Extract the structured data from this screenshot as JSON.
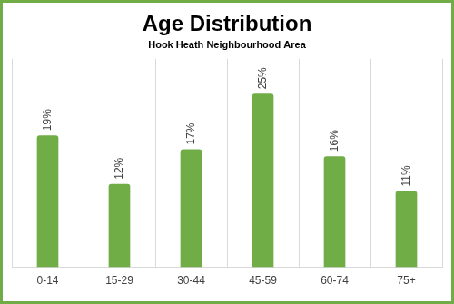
{
  "chart_data": {
    "type": "bar",
    "title": "Age Distribution",
    "subtitle": "Hook Heath Neighbourhood Area",
    "categories": [
      "0-14",
      "15-29",
      "30-44",
      "45-59",
      "60-74",
      "75+"
    ],
    "values": [
      19,
      12,
      17,
      25,
      16,
      11
    ],
    "value_labels": [
      "19%",
      "12%",
      "17%",
      "25%",
      "16%",
      "11%"
    ],
    "color": "#70ad47",
    "grid": true,
    "data_labels": true,
    "tick_labels": "x"
  }
}
